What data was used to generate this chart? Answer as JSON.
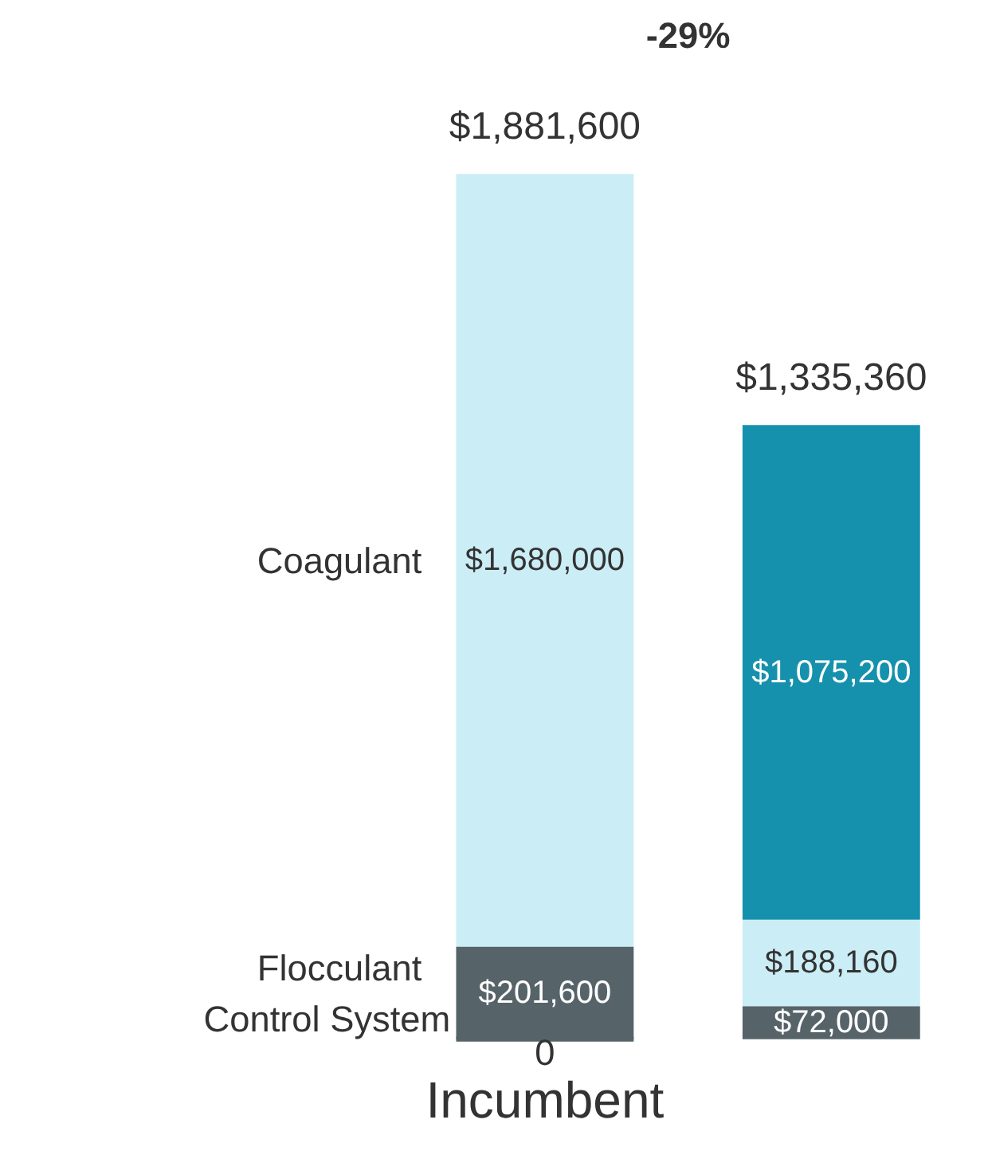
{
  "chart_data": {
    "type": "bar",
    "stacked": true,
    "categories": [
      "Incumbent",
      null
    ],
    "series": [
      {
        "name": "Control System",
        "colors": [
          "#566469",
          "#566469"
        ],
        "values": [
          0,
          72000
        ],
        "value_labels": [
          "0",
          "$72,000"
        ]
      },
      {
        "name": "Flocculant",
        "colors": [
          "#566469",
          "#cbedf6"
        ],
        "values": [
          201600,
          188160
        ],
        "value_labels": [
          "$201,600",
          "$188,160"
        ]
      },
      {
        "name": "Coagulant",
        "colors": [
          "#cbedf6",
          "#1591ad"
        ],
        "values": [
          1680000,
          1075200
        ],
        "value_labels": [
          "$1,680,000",
          "$1,075,200"
        ]
      }
    ],
    "totals": [
      "$1,881,600",
      "$1,335,360"
    ],
    "annotations": [
      "-29%"
    ]
  }
}
